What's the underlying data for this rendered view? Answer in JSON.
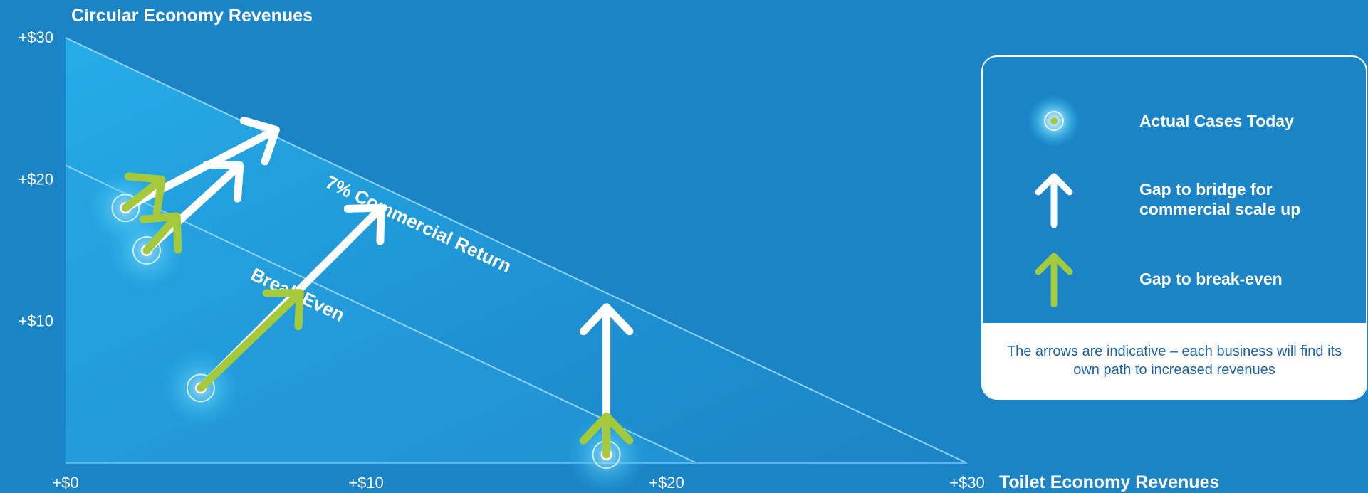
{
  "chart_data": {
    "type": "scatter",
    "title": "",
    "xlabel": "Toilet Economy Revenues",
    "ylabel": "Circular Economy Revenues",
    "xlim": [
      0,
      30
    ],
    "ylim": [
      0,
      30
    ],
    "x_ticks": [
      "+$0",
      "+$10",
      "+$20",
      "+$30"
    ],
    "y_ticks": [
      "+$10",
      "+$20",
      "+$30"
    ],
    "lines": [
      {
        "label": "7% Commercial Return",
        "points": [
          [
            0,
            30
          ],
          [
            30,
            0
          ]
        ]
      },
      {
        "label": "Break Even",
        "points": [
          [
            0,
            21
          ],
          [
            21,
            0
          ]
        ]
      }
    ],
    "cases": [
      {
        "x": 2,
        "y": 18,
        "white_arrow_to": [
          7,
          23.5
        ],
        "green_arrow_to": [
          3.2,
          20
        ]
      },
      {
        "x": 2.7,
        "y": 15,
        "white_arrow_to": [
          5.8,
          21
        ],
        "green_arrow_to": [
          3.7,
          17.4
        ]
      },
      {
        "x": 4.5,
        "y": 5.3,
        "white_arrow_to": [
          10.5,
          18
        ],
        "green_arrow_to": [
          7.8,
          12
        ]
      },
      {
        "x": 18,
        "y": 0.6,
        "white_arrow_to": [
          18,
          11
        ],
        "green_arrow_to": [
          18,
          3.3
        ]
      }
    ]
  },
  "legend": {
    "items": [
      {
        "icon": "case-marker-icon",
        "label": "Actual Cases Today"
      },
      {
        "icon": "white-arrow-icon",
        "label": "Gap to bridge for commercial scale up"
      },
      {
        "icon": "green-arrow-icon",
        "label": "Gap to break-even"
      }
    ],
    "note": "The arrows are indicative – each business will find its own path to increased revenues"
  },
  "colors": {
    "background": "#1b84c6",
    "triangle": "#23a8e6",
    "white_arrow": "#ffffff",
    "green_arrow": "#a4c93b",
    "note_text": "#1b63a8"
  }
}
